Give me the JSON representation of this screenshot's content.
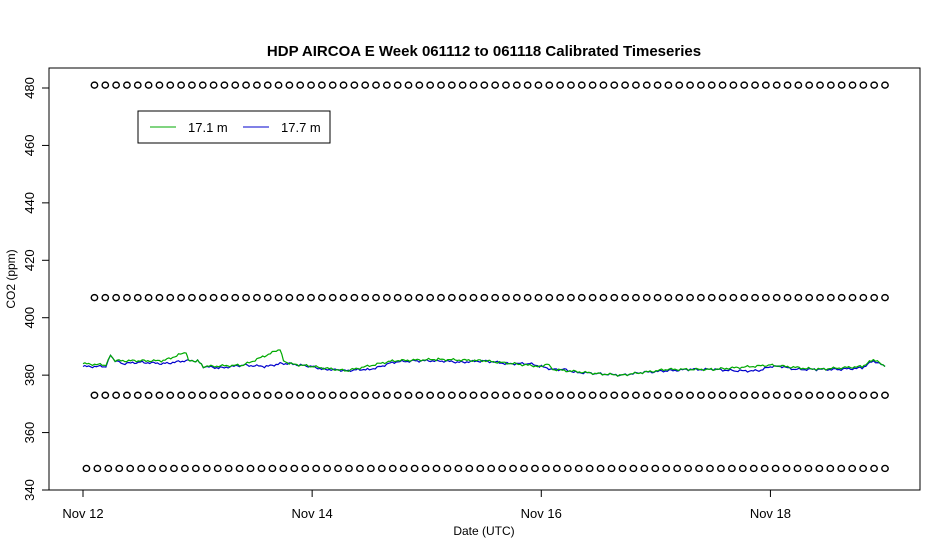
{
  "chart_data": {
    "type": "line",
    "title": "HDP AIRCOA E  Week 061112 to 061118  Calibrated Timeseries",
    "xlabel": "Date (UTC)",
    "ylabel": "CO2 (ppm)",
    "x_range_days": [
      0,
      7
    ],
    "x_ticks": [
      {
        "day": 0,
        "label": "Nov 12"
      },
      {
        "day": 2,
        "label": "Nov 14"
      },
      {
        "day": 4,
        "label": "Nov 16"
      },
      {
        "day": 6,
        "label": "Nov 18"
      }
    ],
    "ylim": [
      340,
      485
    ],
    "y_ticks": [
      340,
      360,
      380,
      400,
      420,
      440,
      460,
      480
    ],
    "legend": {
      "placement": "top-left",
      "entries": [
        {
          "label": "17.1 m",
          "color": "#00aa00"
        },
        {
          "label": "17.7 m",
          "color": "#0000cc"
        }
      ]
    },
    "series": [
      {
        "name": "17.7 m",
        "color": "#0000cc",
        "points": [
          [
            0,
            383
          ],
          [
            0.2,
            383
          ],
          [
            0.24,
            387
          ],
          [
            0.28,
            385
          ],
          [
            0.35,
            384
          ],
          [
            0.5,
            384.5
          ],
          [
            0.7,
            384
          ],
          [
            0.9,
            385
          ],
          [
            1.0,
            385
          ],
          [
            1.05,
            383
          ],
          [
            1.2,
            382.5
          ],
          [
            1.4,
            383.5
          ],
          [
            1.6,
            383
          ],
          [
            1.72,
            384
          ],
          [
            1.8,
            384
          ],
          [
            1.9,
            383.5
          ],
          [
            2.0,
            383
          ],
          [
            2.1,
            382
          ],
          [
            2.2,
            382
          ],
          [
            2.3,
            381.5
          ],
          [
            2.4,
            382
          ],
          [
            2.5,
            382
          ],
          [
            2.6,
            383
          ],
          [
            2.7,
            384.5
          ],
          [
            2.9,
            385
          ],
          [
            3.1,
            385
          ],
          [
            3.3,
            384.5
          ],
          [
            3.5,
            385
          ],
          [
            3.7,
            384
          ],
          [
            3.9,
            384
          ],
          [
            4.0,
            383
          ],
          [
            4.1,
            382
          ],
          [
            4.2,
            382
          ],
          [
            4.3,
            381
          ],
          [
            4.5,
            380.5
          ],
          [
            4.7,
            380
          ],
          [
            4.9,
            381
          ],
          [
            5.1,
            381.5
          ],
          [
            5.3,
            382
          ],
          [
            5.5,
            382
          ],
          [
            5.7,
            381.5
          ],
          [
            5.9,
            381.5
          ],
          [
            6.0,
            383
          ],
          [
            6.1,
            383
          ],
          [
            6.2,
            382
          ],
          [
            6.4,
            382
          ],
          [
            6.6,
            382
          ],
          [
            6.8,
            382.5
          ],
          [
            6.9,
            385
          ],
          [
            7.0,
            383
          ]
        ]
      },
      {
        "name": "17.1 m",
        "color": "#00aa00",
        "points": [
          [
            0,
            384
          ],
          [
            0.2,
            383.5
          ],
          [
            0.24,
            387
          ],
          [
            0.28,
            385
          ],
          [
            0.5,
            385
          ],
          [
            0.7,
            385
          ],
          [
            0.9,
            388
          ],
          [
            0.92,
            385
          ],
          [
            1.0,
            385
          ],
          [
            1.05,
            383
          ],
          [
            1.4,
            383.5
          ],
          [
            1.72,
            389
          ],
          [
            1.75,
            385
          ],
          [
            1.8,
            384
          ],
          [
            2.0,
            383
          ],
          [
            2.3,
            381.5
          ],
          [
            2.7,
            385
          ],
          [
            3.1,
            385.5
          ],
          [
            3.5,
            385
          ],
          [
            4.0,
            383
          ],
          [
            4.05,
            384
          ],
          [
            4.1,
            382
          ],
          [
            4.5,
            380.5
          ],
          [
            4.7,
            380
          ],
          [
            5.1,
            382
          ],
          [
            5.5,
            382
          ],
          [
            6.0,
            383.5
          ],
          [
            6.4,
            382
          ],
          [
            6.8,
            383
          ],
          [
            6.88,
            385
          ],
          [
            6.9,
            385.5
          ],
          [
            7.0,
            383
          ]
        ]
      }
    ],
    "reference_markers": [
      {
        "y": 481,
        "day_start": 0.1,
        "day_end": 7.0
      },
      {
        "y": 407,
        "day_start": 0.1,
        "day_end": 7.0
      },
      {
        "y": 373,
        "day_start": 0.1,
        "day_end": 7.0
      },
      {
        "y": 347.5,
        "day_start": 0.03,
        "day_end": 7.0
      }
    ]
  }
}
